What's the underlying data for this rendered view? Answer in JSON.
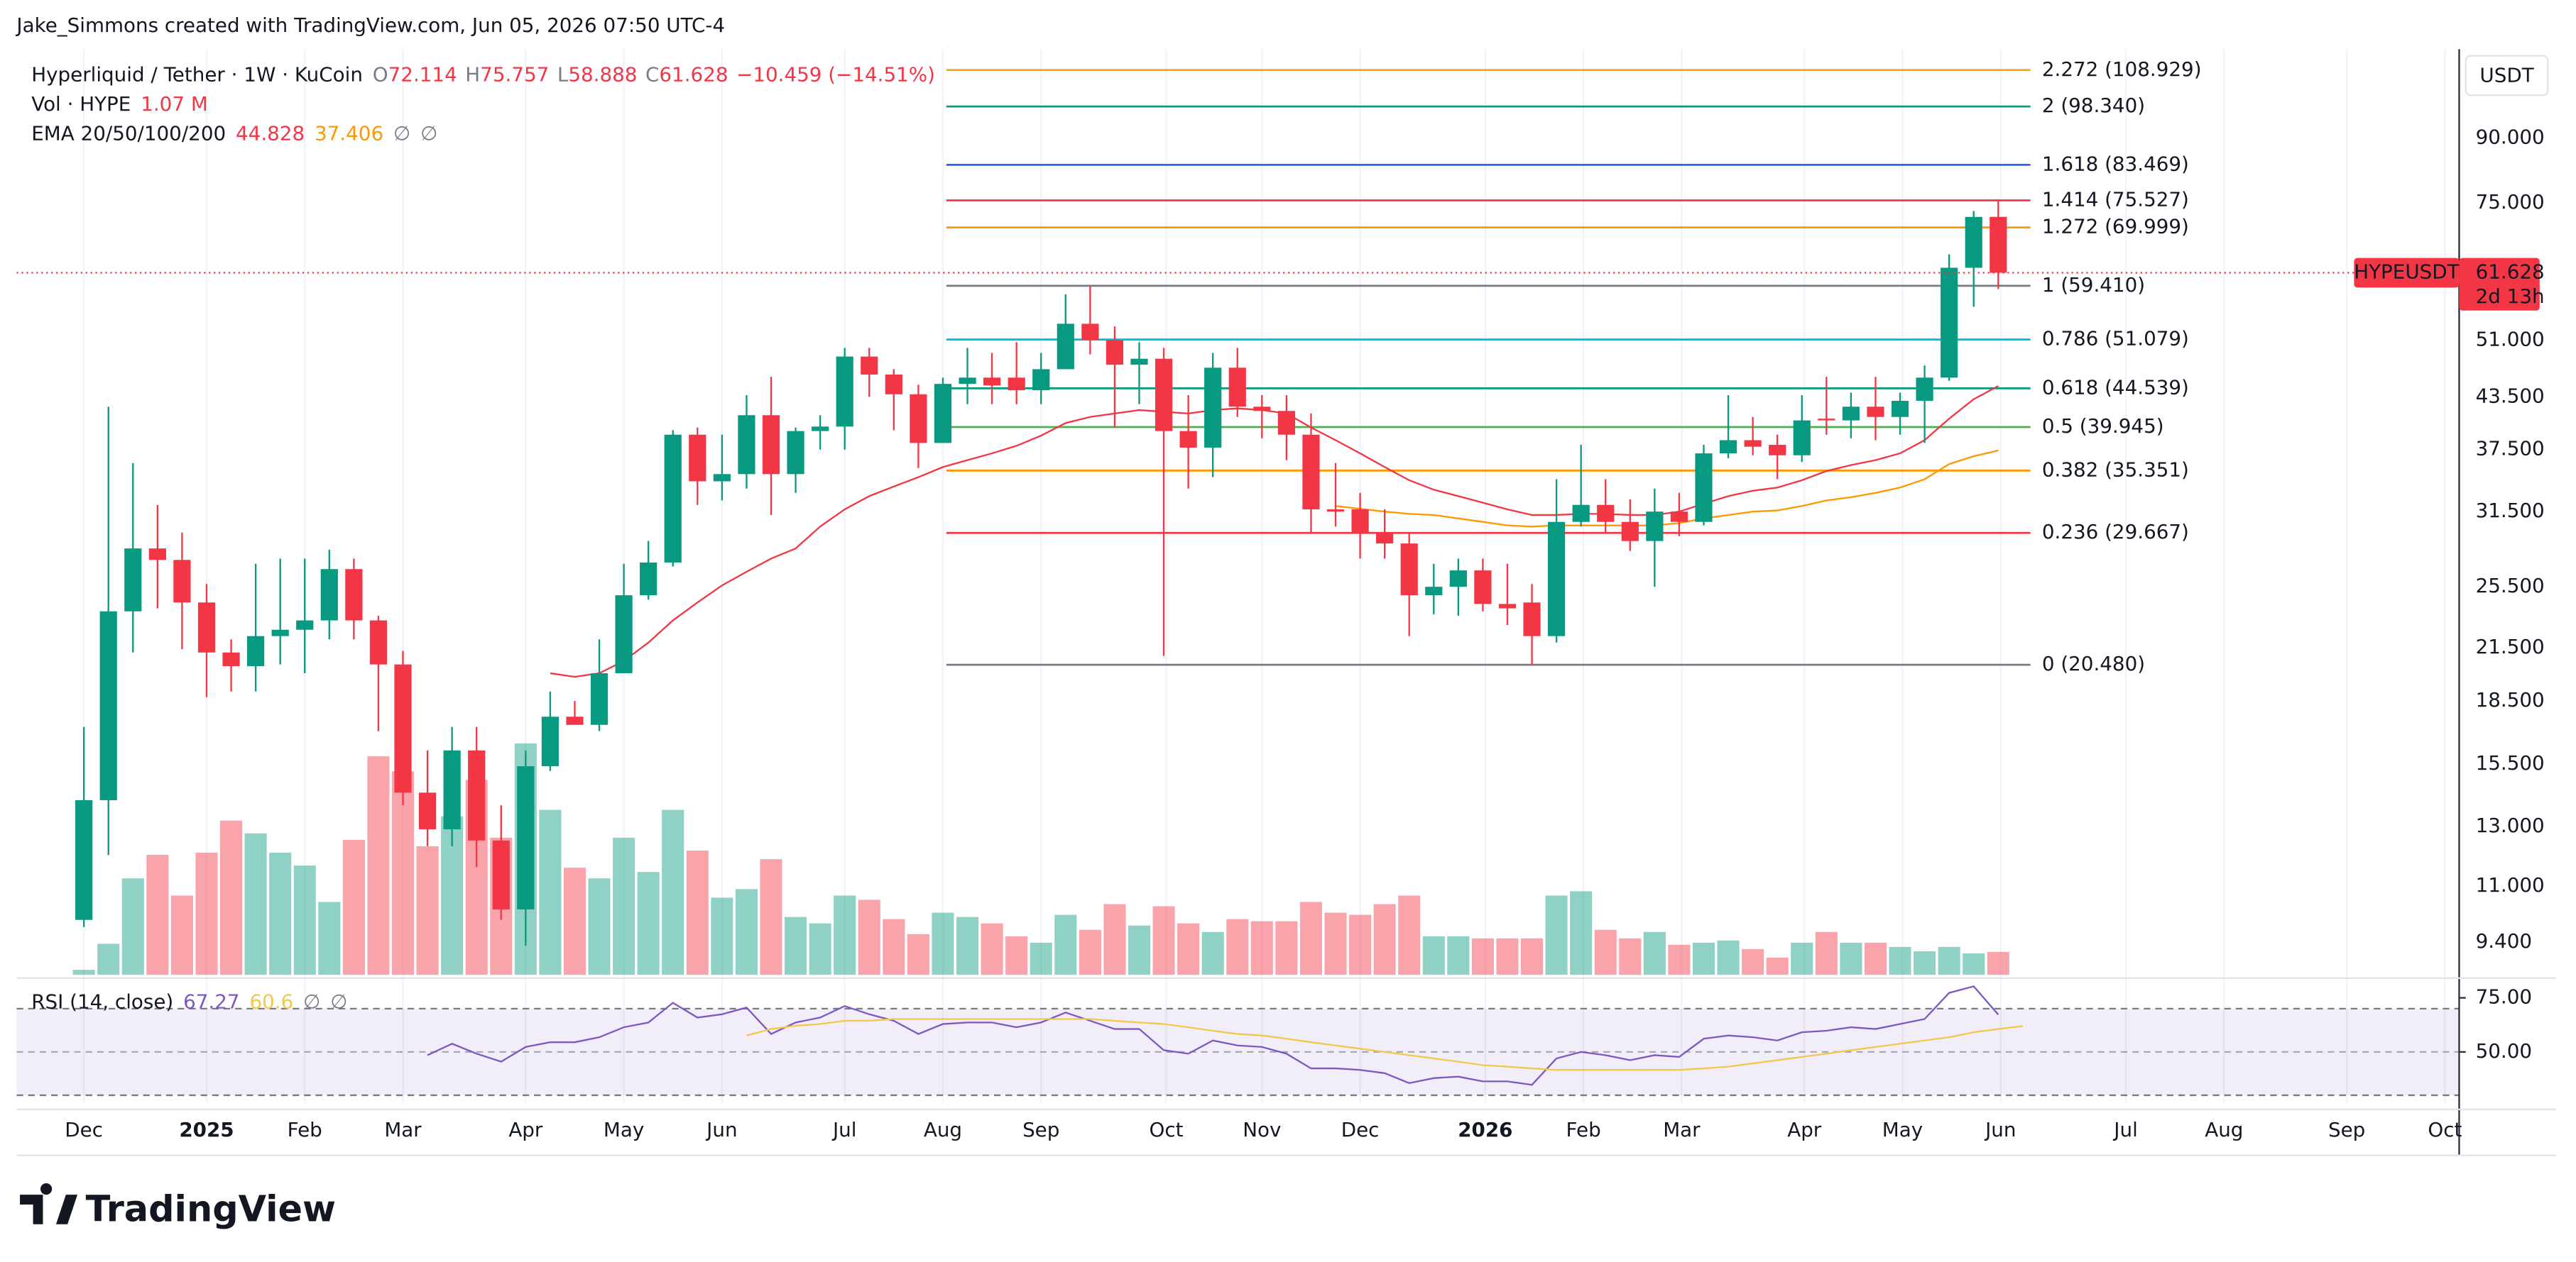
{
  "header": "Jake_Simmons created with TradingView.com, Jun 05, 2026 07:50 UTC-4",
  "brand": "TradingView",
  "chart_data": {
    "type": "candlestick",
    "title": "Hyperliquid / Tether · 1W · KuCoin",
    "ohlc_keys": [
      "O",
      "H",
      "L",
      "C"
    ],
    "change": "−10.459 (−14.51%)",
    "currency": "USDT",
    "log_scale": true,
    "grid": true,
    "up_color": "#089981",
    "down_color": "#f23645",
    "xlim": [
      -2.74,
      96.78
    ],
    "xticks": [
      {
        "value": 0,
        "label": "Dec"
      },
      {
        "value": 5,
        "label": "2025"
      },
      {
        "value": 9,
        "label": "Feb"
      },
      {
        "value": 13,
        "label": "Mar"
      },
      {
        "value": 18,
        "label": "Apr"
      },
      {
        "value": 22,
        "label": "May"
      },
      {
        "value": 26,
        "label": "Jun"
      },
      {
        "value": 31,
        "label": "Jul"
      },
      {
        "value": 35,
        "label": "Aug"
      },
      {
        "value": 39,
        "label": "Sep"
      },
      {
        "value": 44.1,
        "label": "Oct"
      },
      {
        "value": 48,
        "label": "Nov"
      },
      {
        "value": 52,
        "label": "Dec"
      },
      {
        "value": 57.1,
        "label": "2026"
      },
      {
        "value": 61.1,
        "label": "Feb"
      },
      {
        "value": 65.1,
        "label": "Mar"
      },
      {
        "value": 70.1,
        "label": "Apr"
      },
      {
        "value": 74.1,
        "label": "May"
      },
      {
        "value": 78.1,
        "label": "Jun"
      },
      {
        "value": 83.2,
        "label": "Jul"
      },
      {
        "value": 87.2,
        "label": "Aug"
      },
      {
        "value": 92.2,
        "label": "Sep"
      },
      {
        "value": 96.2,
        "label": "Oct"
      }
    ],
    "ylim": [
      8.57,
      115.5
    ],
    "yticks": [
      {
        "value": 9.4,
        "label": "9.400"
      },
      {
        "value": 11,
        "label": "11.000"
      },
      {
        "value": 13,
        "label": "13.000"
      },
      {
        "value": 15.5,
        "label": "15.500"
      },
      {
        "value": 18.5,
        "label": "18.500"
      },
      {
        "value": 21.5,
        "label": "21.500"
      },
      {
        "value": 25.5,
        "label": "25.500"
      },
      {
        "value": 31.5,
        "label": "31.500"
      },
      {
        "value": 37.5,
        "label": "37.500"
      },
      {
        "value": 43.5,
        "label": "43.500"
      },
      {
        "value": 51,
        "label": "51.000"
      },
      {
        "value": 75,
        "label": "75.000"
      },
      {
        "value": 90,
        "label": "90.000"
      }
    ],
    "open": [
      10.0,
      14.0,
      23.8,
      28.4,
      27.5,
      24.4,
      21.2,
      20.4,
      22.2,
      22.6,
      23.2,
      26.8,
      23.2,
      20.5,
      14.3,
      12.9,
      16.1,
      12.5,
      10.3,
      15.4,
      17.7,
      17.3,
      20.0,
      24.9,
      27.3,
      39.1,
      34.3,
      35.0,
      41.3,
      35.0,
      39.5,
      40.0,
      48.7,
      46.3,
      43.8,
      38.2,
      45.1,
      45.9,
      45.9,
      44.3,
      47.0,
      53.4,
      51.0,
      47.6,
      48.4,
      39.5,
      37.7,
      47.2,
      42.3,
      41.8,
      39.1,
      31.7,
      31.7,
      29.7,
      28.8,
      24.9,
      25.5,
      26.7,
      24.3,
      24.4,
      22.2,
      30.6,
      32.1,
      30.6,
      29.0,
      31.5,
      30.6,
      37.1,
      38.5,
      38.0,
      36.9,
      40.9,
      40.7,
      42.3,
      41.1,
      43.0,
      45.9,
      62.5,
      72.114
    ],
    "high": [
      17.2,
      42.3,
      36.1,
      32.1,
      29.7,
      25.7,
      22.0,
      27.2,
      27.6,
      27.6,
      28.3,
      27.6,
      23.5,
      21.3,
      16.1,
      17.2,
      17.2,
      13.8,
      16.1,
      19.0,
      18.5,
      22.0,
      27.2,
      29.0,
      39.6,
      39.9,
      39.1,
      43.7,
      46.0,
      39.9,
      41.3,
      49.9,
      49.9,
      47.0,
      45.0,
      45.9,
      49.9,
      49.2,
      50.7,
      49.2,
      58.0,
      59.4,
      53.0,
      50.7,
      49.9,
      43.7,
      49.2,
      49.9,
      43.7,
      43.7,
      41.5,
      36.1,
      33.2,
      31.7,
      29.7,
      27.2,
      27.6,
      27.6,
      27.2,
      25.7,
      34.5,
      38.0,
      34.5,
      32.6,
      33.6,
      33.2,
      38.0,
      43.7,
      41.1,
      39.1,
      43.7,
      46.0,
      44.0,
      46.0,
      44.0,
      47.5,
      64.9,
      73.3,
      75.757
    ],
    "low": [
      9.8,
      12.0,
      21.2,
      24.0,
      21.4,
      18.7,
      19.0,
      19.0,
      20.5,
      20.0,
      22.0,
      22.0,
      17.0,
      13.8,
      12.3,
      12.3,
      11.6,
      10.0,
      9.3,
      15.2,
      17.3,
      17.0,
      20.0,
      24.6,
      27.0,
      32.1,
      32.5,
      33.6,
      31.2,
      33.2,
      37.5,
      37.5,
      43.5,
      39.6,
      35.6,
      38.2,
      42.6,
      42.6,
      42.6,
      42.6,
      47.0,
      49.0,
      39.9,
      42.6,
      21.0,
      33.6,
      34.7,
      41.1,
      38.7,
      36.4,
      29.7,
      30.2,
      27.6,
      27.6,
      22.2,
      23.6,
      23.5,
      23.8,
      22.9,
      20.48,
      21.8,
      30.2,
      29.7,
      28.2,
      25.5,
      29.4,
      30.3,
      36.6,
      36.9,
      34.5,
      36.2,
      39.1,
      38.7,
      38.5,
      39.1,
      38.2,
      45.5,
      56.0,
      58.888
    ],
    "close": [
      14.0,
      23.8,
      28.4,
      27.5,
      24.4,
      21.2,
      20.4,
      22.2,
      22.6,
      23.2,
      26.8,
      23.2,
      20.5,
      14.3,
      12.9,
      16.1,
      12.5,
      10.3,
      15.4,
      17.7,
      17.3,
      20.0,
      24.9,
      27.3,
      39.1,
      34.3,
      35.0,
      41.3,
      35.0,
      39.5,
      40.0,
      48.7,
      46.3,
      43.8,
      38.2,
      45.1,
      45.9,
      44.9,
      44.3,
      47.0,
      53.4,
      51.0,
      47.6,
      48.4,
      39.5,
      37.7,
      47.2,
      42.3,
      41.8,
      39.1,
      31.7,
      31.5,
      29.7,
      28.8,
      24.9,
      25.5,
      26.7,
      24.3,
      24.0,
      22.2,
      30.6,
      32.1,
      30.6,
      29.0,
      31.5,
      30.6,
      37.1,
      38.5,
      37.8,
      36.9,
      40.7,
      40.7,
      42.3,
      41.1,
      43.0,
      45.9,
      62.5,
      72.1,
      61.628
    ],
    "volume": {
      "label": "Vol · HYPE",
      "value_label": "1.07 M",
      "values": [
        0.23,
        1.45,
        4.5,
        5.6,
        3.7,
        5.7,
        7.2,
        6.6,
        5.7,
        5.1,
        3.4,
        6.3,
        10.2,
        9.5,
        6.0,
        7.4,
        9.1,
        6.4,
        10.8,
        7.7,
        5.0,
        4.5,
        6.4,
        4.8,
        7.7,
        5.8,
        3.6,
        4.0,
        5.4,
        2.7,
        2.4,
        3.7,
        3.5,
        2.6,
        1.9,
        2.9,
        2.7,
        2.4,
        1.8,
        1.5,
        2.8,
        2.1,
        3.3,
        2.3,
        3.2,
        2.4,
        2.0,
        2.6,
        2.5,
        2.5,
        3.4,
        2.9,
        2.8,
        3.3,
        3.7,
        1.8,
        1.8,
        1.7,
        1.7,
        1.7,
        3.7,
        3.9,
        2.1,
        1.7,
        2.0,
        1.4,
        1.5,
        1.6,
        1.2,
        0.8,
        1.5,
        2.0,
        1.5,
        1.5,
        1.3,
        1.1,
        1.3,
        1.0,
        1.07
      ]
    },
    "ema": {
      "label": "EMA 20/50/100/200",
      "empty_labels": [
        "∅",
        "∅"
      ],
      "series": [
        {
          "color": "#f23645",
          "values": [
            null,
            null,
            null,
            null,
            null,
            null,
            null,
            null,
            null,
            null,
            null,
            null,
            null,
            null,
            null,
            null,
            null,
            null,
            null,
            20.0,
            19.8,
            20.0,
            20.7,
            21.8,
            23.2,
            24.4,
            25.6,
            26.6,
            27.6,
            28.4,
            30.2,
            31.7,
            32.9,
            33.8,
            34.7,
            35.7,
            36.4,
            37.1,
            37.9,
            39.0,
            40.4,
            41.1,
            41.5,
            41.9,
            41.7,
            41.5,
            41.9,
            42.1,
            41.9,
            41.5,
            39.9,
            38.5,
            37.1,
            35.7,
            34.4,
            33.5,
            32.9,
            32.3,
            31.7,
            31.2,
            31.2,
            31.3,
            31.3,
            31.2,
            31.2,
            31.5,
            32.2,
            32.9,
            33.4,
            33.7,
            34.4,
            35.3,
            35.9,
            36.4,
            37.1,
            38.5,
            40.9,
            43.2,
            44.828
          ]
        },
        {
          "color": "#ff9800",
          "values": [
            null,
            null,
            null,
            null,
            null,
            null,
            null,
            null,
            null,
            null,
            null,
            null,
            null,
            null,
            null,
            null,
            null,
            null,
            null,
            null,
            null,
            null,
            null,
            null,
            null,
            null,
            null,
            null,
            null,
            null,
            null,
            null,
            null,
            null,
            null,
            null,
            null,
            null,
            null,
            null,
            null,
            null,
            null,
            null,
            null,
            null,
            null,
            null,
            null,
            null,
            null,
            32.0,
            31.75,
            31.5,
            31.3,
            31.2,
            30.9,
            30.6,
            30.3,
            30.2,
            30.3,
            30.3,
            30.3,
            30.3,
            30.3,
            30.5,
            30.9,
            31.2,
            31.5,
            31.6,
            32.0,
            32.5,
            32.8,
            33.2,
            33.7,
            34.5,
            36.0,
            36.8,
            37.406
          ]
        }
      ]
    },
    "last_price": {
      "symbol": "HYPEUSDT",
      "countdown": "2d 13h"
    },
    "fib": [
      {
        "value": 108.929,
        "label": "2.272 (108.929)",
        "color": "#f7a21b"
      },
      {
        "value": 98.34,
        "label": "2 (98.340)",
        "color": "#089981"
      },
      {
        "value": 83.469,
        "label": "1.618 (83.469)",
        "color": "#2962ff"
      },
      {
        "value": 75.527,
        "label": "1.414 (75.527)",
        "color": "#f23645"
      },
      {
        "value": 69.999,
        "label": "1.272 (69.999)",
        "color": "#ff9800"
      },
      {
        "value": 59.41,
        "label": "1 (59.410)",
        "color": "#787b86"
      },
      {
        "value": 51.079,
        "label": "0.786 (51.079)",
        "color": "#00bcd4"
      },
      {
        "value": 44.539,
        "label": "0.618 (44.539)",
        "color": "#089981"
      },
      {
        "value": 39.945,
        "label": "0.5 (39.945)",
        "color": "#4caf50"
      },
      {
        "value": 35.351,
        "label": "0.382 (35.351)",
        "color": "#ff9800"
      },
      {
        "value": 29.667,
        "label": "0.236 (29.667)",
        "color": "#f23645"
      },
      {
        "value": 20.48,
        "label": "0 (20.480)",
        "color": "#787b86"
      }
    ],
    "rsi": {
      "label": "RSI (14, close)",
      "empty_labels": [
        "∅",
        "∅"
      ],
      "ylim": [
        26.5,
        82.6
      ],
      "bands": [
        30,
        70
      ],
      "yticks": [
        {
          "value": 50,
          "label": "50.00"
        },
        {
          "value": 75,
          "label": "75.00"
        }
      ],
      "series": [
        {
          "color": "#7e57c2",
          "values": [
            null,
            null,
            null,
            null,
            null,
            null,
            null,
            null,
            null,
            null,
            null,
            null,
            null,
            null,
            48.5,
            53.8,
            49.2,
            45.5,
            52.3,
            54.5,
            54.5,
            56.8,
            61.4,
            63.6,
            72.7,
            65.9,
            67.4,
            70.5,
            58.3,
            63.6,
            65.9,
            71.2,
            67.4,
            64.4,
            58.3,
            62.9,
            63.6,
            63.6,
            61.4,
            63.6,
            68.2,
            64.4,
            60.6,
            60.6,
            50.8,
            49.2,
            55.3,
            53.0,
            52.3,
            49.2,
            42.4,
            42.4,
            41.7,
            40.2,
            35.6,
            37.9,
            38.6,
            36.4,
            36.4,
            34.8,
            47.0,
            50.0,
            48.5,
            46.2,
            48.5,
            47.7,
            56.1,
            57.6,
            56.8,
            55.3,
            59.1,
            59.8,
            61.4,
            60.6,
            62.9,
            65.2,
            77.3,
            80.3,
            67.27
          ]
        },
        {
          "color": "#f2c84b",
          "values": [
            null,
            null,
            null,
            null,
            null,
            null,
            null,
            null,
            null,
            null,
            null,
            null,
            null,
            null,
            null,
            null,
            null,
            null,
            null,
            null,
            null,
            null,
            null,
            null,
            null,
            null,
            null,
            57.6,
            60.6,
            62.1,
            62.9,
            64.4,
            64.4,
            65.2,
            65.2,
            65.2,
            65.2,
            65.2,
            65.2,
            65.2,
            65.2,
            65.2,
            64.4,
            63.6,
            62.9,
            61.4,
            59.8,
            58.3,
            57.6,
            56.1,
            54.5,
            53.0,
            51.5,
            50.0,
            48.5,
            47.0,
            45.5,
            43.9,
            43.2,
            42.4,
            41.7,
            41.7,
            41.7,
            41.7,
            41.7,
            41.7,
            42.4,
            43.2,
            44.7,
            46.2,
            47.7,
            49.2,
            50.8,
            52.3,
            53.8,
            55.3,
            56.8,
            59.1,
            60.6,
            61.94
          ]
        }
      ]
    }
  }
}
